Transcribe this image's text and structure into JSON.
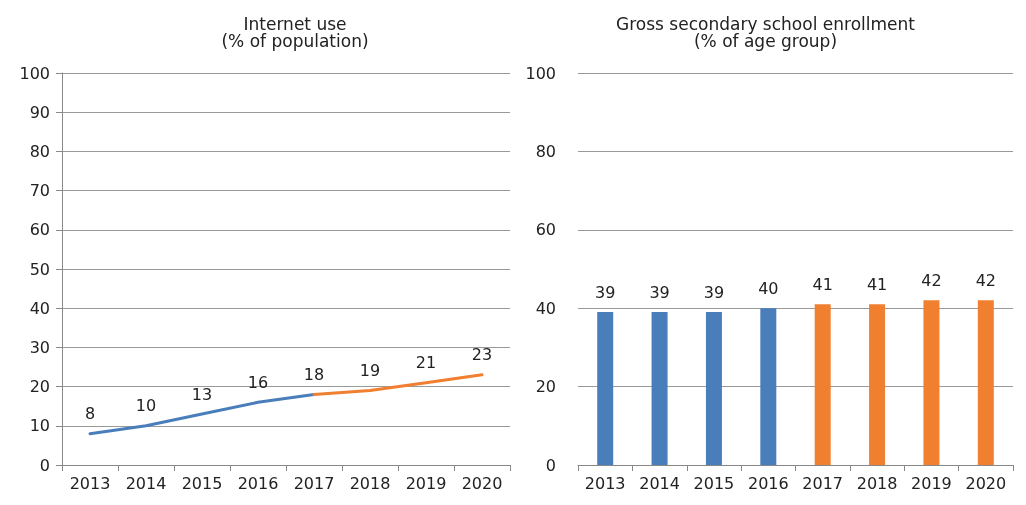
{
  "chart_data": [
    {
      "type": "line",
      "title": "Internet use",
      "subtitle": "(% of population)",
      "categories": [
        "2013",
        "2014",
        "2015",
        "2016",
        "2017",
        "2018",
        "2019",
        "2020"
      ],
      "series": [
        {
          "color": "#4a7ebb",
          "values": [
            8,
            10,
            13,
            16,
            18,
            null,
            null,
            null
          ],
          "value_labels": [
            "8",
            "10",
            "13",
            "16",
            "18",
            null,
            null,
            null
          ]
        },
        {
          "color": "#f07f2f",
          "values": [
            null,
            null,
            null,
            null,
            18,
            19,
            21,
            23
          ],
          "value_labels": [
            null,
            null,
            null,
            null,
            null,
            "19",
            "21",
            "23"
          ]
        }
      ],
      "ylim": [
        0,
        100
      ],
      "yticks": [
        0,
        10,
        20,
        30,
        40,
        50,
        60,
        70,
        80,
        90,
        100
      ],
      "grid": "y",
      "marker": "none",
      "line_style": "solid"
    },
    {
      "type": "bar",
      "title": "Gross secondary school enrollment",
      "subtitle": "(% of age group)",
      "categories": [
        "2013",
        "2014",
        "2015",
        "2016",
        "2017",
        "2018",
        "2019",
        "2020"
      ],
      "values": [
        39,
        39,
        39,
        40,
        41,
        41,
        42,
        42
      ],
      "colors": [
        "#4a7ebb",
        "#4a7ebb",
        "#4a7ebb",
        "#4a7ebb",
        "#f07f2f",
        "#f07f2f",
        "#f07f2f",
        "#f07f2f"
      ],
      "data_labels": true,
      "ylim": [
        0,
        100
      ],
      "yticks": [
        0,
        20,
        40,
        60,
        80,
        100
      ],
      "grid": "y"
    }
  ]
}
